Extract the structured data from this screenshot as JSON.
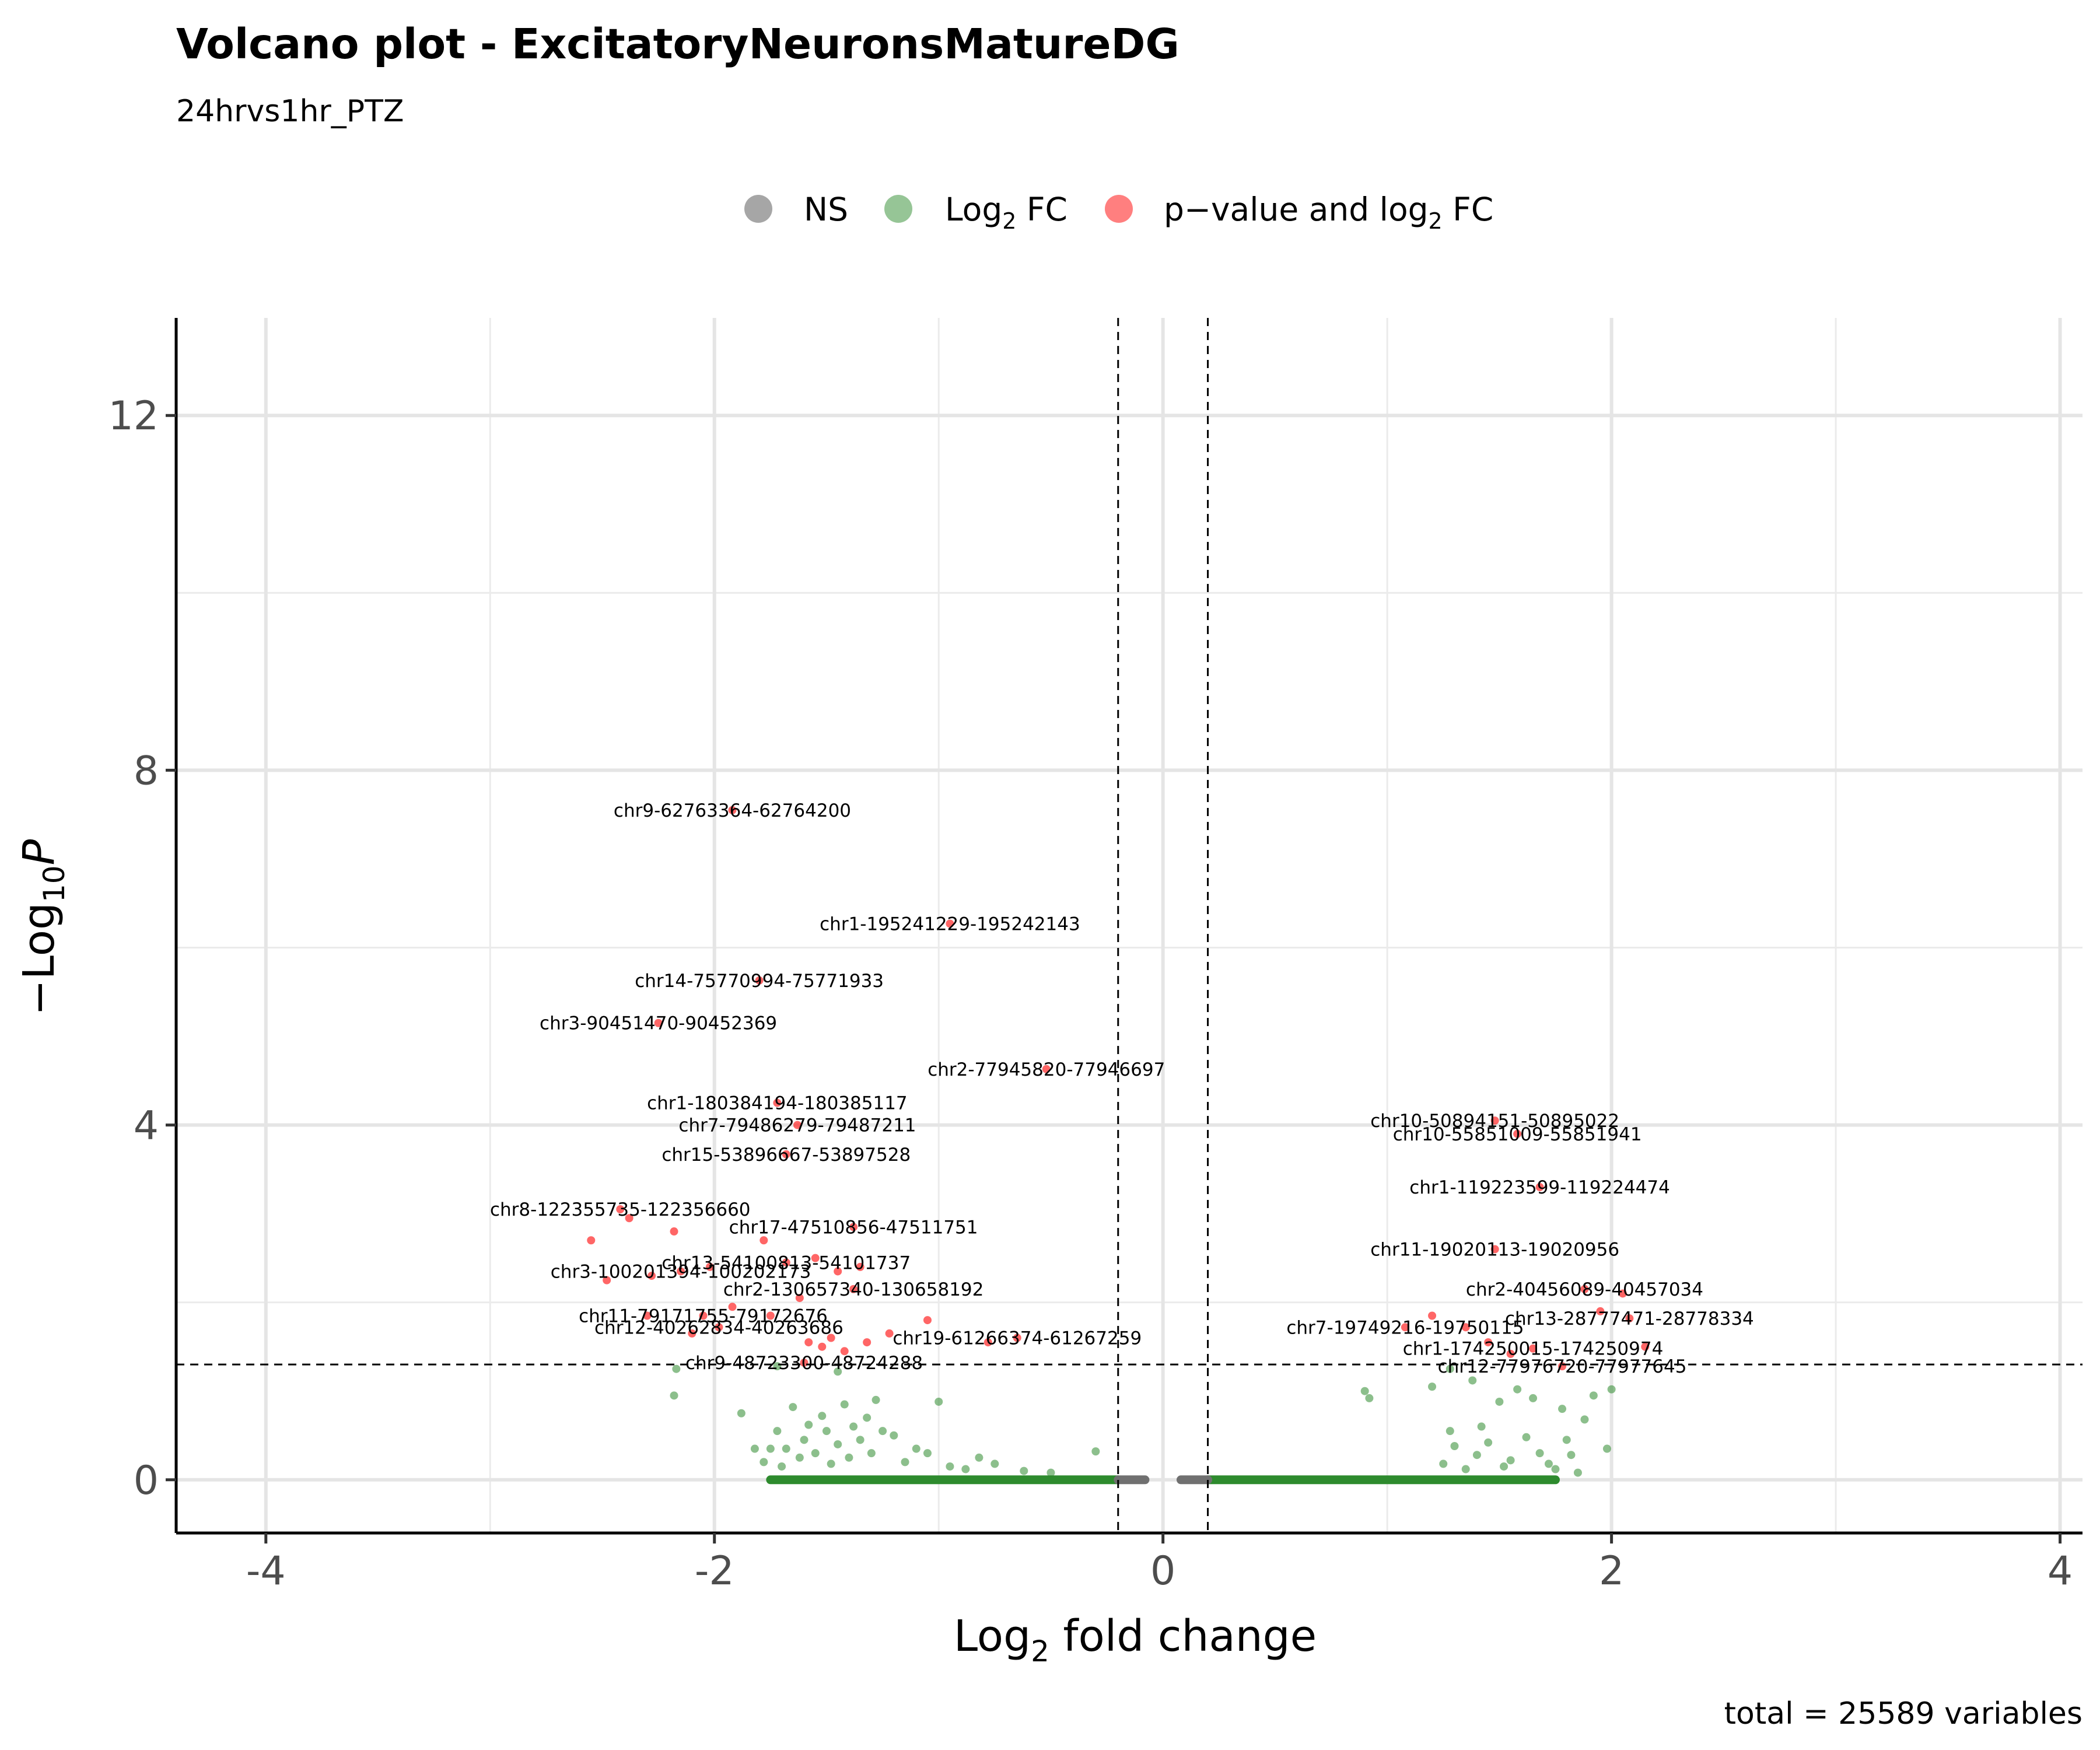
{
  "chart_data": {
    "type": "scatter",
    "title": "Volcano plot - ExcitatoryNeuronsMatureDG",
    "subtitle": "24hrvs1hr_PTZ",
    "caption": "total = 25589 variables",
    "xlabel": {
      "base": "Log",
      "sub": "2",
      "rest": " fold change"
    },
    "ylabel": {
      "pre": "−Log",
      "sub": "10",
      "italic": "P"
    },
    "xlim": [
      -4.4,
      4.1
    ],
    "ylim": [
      -0.6,
      13.1
    ],
    "x_ticks": [
      -4,
      -2,
      0,
      2,
      4
    ],
    "x_tick_labels": [
      "-4",
      "-2",
      "0",
      "2",
      "4"
    ],
    "y_ticks": [
      0,
      4,
      8,
      12
    ],
    "y_tick_labels": [
      "0",
      "4",
      "8",
      "12"
    ],
    "fc_cutoff": 0.2,
    "p_cutoff_neglog10": 1.3,
    "grid": true,
    "legend_position": "top",
    "legend": [
      {
        "key": "NS",
        "label": "NS",
        "color": "#808080"
      },
      {
        "key": "FC",
        "label_base": "Log",
        "label_sub": "2",
        "label_rest": " FC",
        "color": "#2e8b2e"
      },
      {
        "key": "P_FC",
        "label_base": "p−value and log",
        "label_sub": "2",
        "label_rest": " FC",
        "color": "#ff0000"
      }
    ],
    "labeled_points": [
      {
        "label": "chr9-62763364-62764200",
        "x": -1.92,
        "y": 7.55
      },
      {
        "label": "chr1-195241229-195242143",
        "x": -0.95,
        "y": 6.27
      },
      {
        "label": "chr14-75770994-75771933",
        "x": -1.8,
        "y": 5.63
      },
      {
        "label": "chr3-90451470-90452369",
        "x": -2.25,
        "y": 5.15
      },
      {
        "label": "chr2-77945820-77946697",
        "x": -0.52,
        "y": 4.63
      },
      {
        "label": "chr1-180384194-180385117",
        "x": -1.72,
        "y": 4.25
      },
      {
        "label": "chr7-79486279-79487211",
        "x": -1.63,
        "y": 4.0
      },
      {
        "label": "chr15-53896667-53897528",
        "x": -1.68,
        "y": 3.67
      },
      {
        "label": "chr8-122355735-122356660",
        "x": -2.42,
        "y": 3.05
      },
      {
        "label": "chr17-47510856-47511751",
        "x": -1.38,
        "y": 2.85
      },
      {
        "label": "chr13-54100813-54101737",
        "x": -1.68,
        "y": 2.45
      },
      {
        "label": "chr3-100201394-100202173",
        "x": -2.15,
        "y": 2.35
      },
      {
        "label": "chr2-130657340-130658192",
        "x": -1.38,
        "y": 2.15
      },
      {
        "label": "chr11-79171755-79172676",
        "x": -2.05,
        "y": 1.85
      },
      {
        "label": "chr12-40262834-40263686",
        "x": -1.98,
        "y": 1.72
      },
      {
        "label": "chr19-61266374-61267259",
        "x": -0.65,
        "y": 1.6
      },
      {
        "label": "chr9-48723300-48724288",
        "x": -1.6,
        "y": 1.32
      },
      {
        "label": "chr10-50894151-50895022",
        "x": 1.48,
        "y": 4.05
      },
      {
        "label": "chr10-55851009-55851941",
        "x": 1.58,
        "y": 3.9
      },
      {
        "label": "chr1-119223599-119224474",
        "x": 1.68,
        "y": 3.3
      },
      {
        "label": "chr11-19020113-19020956",
        "x": 1.48,
        "y": 2.6
      },
      {
        "label": "chr2-40456089-40457034",
        "x": 1.88,
        "y": 2.15
      },
      {
        "label": "chr7-19749216-19750115",
        "x": 1.08,
        "y": 1.72
      },
      {
        "label": "chr13-28777471-28778334",
        "x": 2.08,
        "y": 1.82
      },
      {
        "label": "chr1-174250015-174250974",
        "x": 1.65,
        "y": 1.48
      },
      {
        "label": "chr12-77976720-77977645",
        "x": 1.78,
        "y": 1.28
      }
    ],
    "sig_points": [
      {
        "x": -2.55,
        "y": 2.7
      },
      {
        "x": -2.48,
        "y": 2.25
      },
      {
        "x": -2.38,
        "y": 2.95
      },
      {
        "x": -2.3,
        "y": 1.85
      },
      {
        "x": -2.28,
        "y": 2.3
      },
      {
        "x": -2.18,
        "y": 2.8
      },
      {
        "x": -2.1,
        "y": 1.65
      },
      {
        "x": -2.02,
        "y": 2.4
      },
      {
        "x": -1.92,
        "y": 1.95
      },
      {
        "x": -1.78,
        "y": 2.7
      },
      {
        "x": -1.75,
        "y": 1.85
      },
      {
        "x": -1.62,
        "y": 2.05
      },
      {
        "x": -1.58,
        "y": 1.55
      },
      {
        "x": -1.55,
        "y": 2.5
      },
      {
        "x": -1.52,
        "y": 1.5
      },
      {
        "x": -1.48,
        "y": 1.6
      },
      {
        "x": -1.45,
        "y": 2.35
      },
      {
        "x": -1.42,
        "y": 1.45
      },
      {
        "x": -1.35,
        "y": 2.4
      },
      {
        "x": -1.32,
        "y": 1.55
      },
      {
        "x": -1.22,
        "y": 1.65
      },
      {
        "x": -1.05,
        "y": 1.8
      },
      {
        "x": -0.78,
        "y": 1.55
      },
      {
        "x": 1.2,
        "y": 1.85
      },
      {
        "x": 1.35,
        "y": 1.72
      },
      {
        "x": 1.45,
        "y": 1.55
      },
      {
        "x": 1.55,
        "y": 1.42
      },
      {
        "x": 1.95,
        "y": 1.9
      },
      {
        "x": 2.05,
        "y": 2.1
      },
      {
        "x": 2.15,
        "y": 1.5
      }
    ],
    "fc_points": [
      {
        "x": -2.17,
        "y": 1.25
      },
      {
        "x": -2.18,
        "y": 0.95
      },
      {
        "x": -1.88,
        "y": 0.75
      },
      {
        "x": -1.82,
        "y": 0.35
      },
      {
        "x": -1.78,
        "y": 0.2
      },
      {
        "x": -1.75,
        "y": 0.35
      },
      {
        "x": -1.72,
        "y": 0.55
      },
      {
        "x": -1.7,
        "y": 0.15
      },
      {
        "x": -1.68,
        "y": 0.35
      },
      {
        "x": -1.65,
        "y": 0.82
      },
      {
        "x": -1.62,
        "y": 0.25
      },
      {
        "x": -1.6,
        "y": 0.45
      },
      {
        "x": -1.58,
        "y": 0.62
      },
      {
        "x": -1.55,
        "y": 0.3
      },
      {
        "x": -1.52,
        "y": 0.72
      },
      {
        "x": -1.5,
        "y": 0.55
      },
      {
        "x": -1.48,
        "y": 0.18
      },
      {
        "x": -1.45,
        "y": 0.4
      },
      {
        "x": -1.42,
        "y": 0.85
      },
      {
        "x": -1.4,
        "y": 0.25
      },
      {
        "x": -1.38,
        "y": 0.6
      },
      {
        "x": -1.35,
        "y": 0.45
      },
      {
        "x": -1.32,
        "y": 0.7
      },
      {
        "x": -1.3,
        "y": 0.3
      },
      {
        "x": -1.28,
        "y": 0.9
      },
      {
        "x": -1.25,
        "y": 0.55
      },
      {
        "x": -1.2,
        "y": 0.5
      },
      {
        "x": -1.15,
        "y": 0.2
      },
      {
        "x": -1.1,
        "y": 0.35
      },
      {
        "x": -1.05,
        "y": 0.3
      },
      {
        "x": -1.0,
        "y": 0.88
      },
      {
        "x": -0.95,
        "y": 0.15
      },
      {
        "x": -0.88,
        "y": 0.12
      },
      {
        "x": -0.82,
        "y": 0.25
      },
      {
        "x": -0.75,
        "y": 0.18
      },
      {
        "x": -0.62,
        "y": 0.1
      },
      {
        "x": -0.5,
        "y": 0.08
      },
      {
        "x": -0.3,
        "y": 0.32
      },
      {
        "x": -1.45,
        "y": 1.22
      },
      {
        "x": -1.72,
        "y": 1.28
      },
      {
        "x": 0.9,
        "y": 1.0
      },
      {
        "x": 0.92,
        "y": 0.92
      },
      {
        "x": 1.2,
        "y": 1.05
      },
      {
        "x": 1.25,
        "y": 0.18
      },
      {
        "x": 1.28,
        "y": 0.55
      },
      {
        "x": 1.3,
        "y": 0.38
      },
      {
        "x": 1.35,
        "y": 0.12
      },
      {
        "x": 1.38,
        "y": 1.12
      },
      {
        "x": 1.4,
        "y": 0.28
      },
      {
        "x": 1.42,
        "y": 0.6
      },
      {
        "x": 1.45,
        "y": 0.42
      },
      {
        "x": 1.5,
        "y": 0.88
      },
      {
        "x": 1.52,
        "y": 0.15
      },
      {
        "x": 1.55,
        "y": 0.22
      },
      {
        "x": 1.58,
        "y": 1.02
      },
      {
        "x": 1.62,
        "y": 0.48
      },
      {
        "x": 1.65,
        "y": 0.92
      },
      {
        "x": 1.68,
        "y": 0.3
      },
      {
        "x": 1.72,
        "y": 0.18
      },
      {
        "x": 1.75,
        "y": 0.12
      },
      {
        "x": 1.78,
        "y": 0.8
      },
      {
        "x": 1.8,
        "y": 0.45
      },
      {
        "x": 1.82,
        "y": 0.28
      },
      {
        "x": 1.85,
        "y": 0.08
      },
      {
        "x": 1.88,
        "y": 0.68
      },
      {
        "x": 1.92,
        "y": 0.95
      },
      {
        "x": 1.98,
        "y": 0.35
      },
      {
        "x": 2.0,
        "y": 1.02
      },
      {
        "x": 1.28,
        "y": 1.25
      }
    ],
    "ns_bands": [
      {
        "x0": -0.2,
        "x1": -0.08
      },
      {
        "x0": 0.08,
        "x1": 0.2
      }
    ],
    "fc_bands": [
      {
        "x0": -1.75,
        "x1": -0.2
      },
      {
        "x0": 0.2,
        "x1": 1.75
      }
    ]
  }
}
